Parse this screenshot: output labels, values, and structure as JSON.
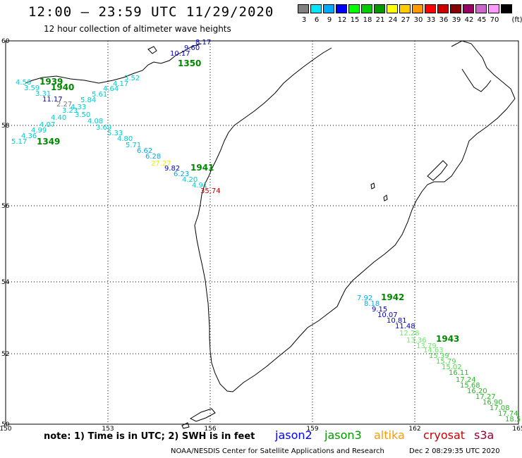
{
  "header": {
    "title": "12:00 – 23:59 UTC 11/29/2020",
    "subtitle": "12 hour collection of altimeter wave heights"
  },
  "color_scale": {
    "unit": "(ft)",
    "levels": [
      {
        "label": "3",
        "color": "#808080"
      },
      {
        "label": "6",
        "color": "#00e5ff"
      },
      {
        "label": "9",
        "color": "#00aaff"
      },
      {
        "label": "12",
        "color": "#0000ff"
      },
      {
        "label": "15",
        "color": "#00ff00"
      },
      {
        "label": "18",
        "color": "#00cc00"
      },
      {
        "label": "21",
        "color": "#009900"
      },
      {
        "label": "24",
        "color": "#ffff00"
      },
      {
        "label": "27",
        "color": "#ffcc00"
      },
      {
        "label": "30",
        "color": "#ff9900"
      },
      {
        "label": "33",
        "color": "#ff0000"
      },
      {
        "label": "36",
        "color": "#cc0000"
      },
      {
        "label": "39",
        "color": "#880000"
      },
      {
        "label": "42",
        "color": "#990066"
      },
      {
        "label": "45",
        "color": "#cc66cc"
      },
      {
        "label": "70",
        "color": "#ff99ff"
      },
      {
        "label": "",
        "color": "#000000"
      }
    ]
  },
  "map": {
    "lon_ticks": [
      "150",
      "153",
      "156",
      "159",
      "162",
      "165"
    ],
    "lat_ticks": [
      "50",
      "52",
      "54",
      "56",
      "58",
      "60"
    ],
    "pass_times": [
      {
        "label": "1350",
        "color": "#008800"
      },
      {
        "label": "1939",
        "color": "#008800"
      },
      {
        "label": "1940",
        "color": "#008800"
      },
      {
        "label": "1349",
        "color": "#008800"
      },
      {
        "label": "1941",
        "color": "#008800"
      },
      {
        "label": "1942",
        "color": "#008800"
      },
      {
        "label": "1943",
        "color": "#008800"
      }
    ],
    "swh_labels": [
      {
        "v": "8.17",
        "c": "#0000cc"
      },
      {
        "v": "9.60",
        "c": "#0000cc"
      },
      {
        "v": "10.17",
        "c": "#0000cc"
      },
      {
        "v": "4.56",
        "c": "#00cccc"
      },
      {
        "v": "3.59",
        "c": "#00cccc"
      },
      {
        "v": "3.31",
        "c": "#00cccc"
      },
      {
        "v": "11.17",
        "c": "#0000cc"
      },
      {
        "v": "2.27",
        "c": "#777777"
      },
      {
        "v": "4.33",
        "c": "#00cccc"
      },
      {
        "v": "3.23",
        "c": "#00cccc"
      },
      {
        "v": "4.40",
        "c": "#00cccc"
      },
      {
        "v": "4.07",
        "c": "#00cccc"
      },
      {
        "v": "4.99",
        "c": "#00cccc"
      },
      {
        "v": "4.36",
        "c": "#00cccc"
      },
      {
        "v": "5.17",
        "c": "#00cccc"
      },
      {
        "v": "5.52",
        "c": "#00cccc"
      },
      {
        "v": "4.17",
        "c": "#00cccc"
      },
      {
        "v": "4.64",
        "c": "#00cccc"
      },
      {
        "v": "5.61",
        "c": "#00cccc"
      },
      {
        "v": "5.84",
        "c": "#00cccc"
      },
      {
        "v": "3.50",
        "c": "#00cccc"
      },
      {
        "v": "4.08",
        "c": "#00cccc"
      },
      {
        "v": "3.69",
        "c": "#00cccc"
      },
      {
        "v": "5.33",
        "c": "#00cccc"
      },
      {
        "v": "4.80",
        "c": "#00cccc"
      },
      {
        "v": "5.71",
        "c": "#00cccc"
      },
      {
        "v": "6.62",
        "c": "#00aaee"
      },
      {
        "v": "6.28",
        "c": "#00aaee"
      },
      {
        "v": "27.27",
        "c": "#eeee00"
      },
      {
        "v": "9.82",
        "c": "#0000cc"
      },
      {
        "v": "6.23",
        "c": "#00aaee"
      },
      {
        "v": "4.20",
        "c": "#00cccc"
      },
      {
        "v": "4.91",
        "c": "#00cccc"
      },
      {
        "v": "35.74",
        "c": "#cc0000"
      },
      {
        "v": "7.92",
        "c": "#00aaee"
      },
      {
        "v": "8.18",
        "c": "#00aaee"
      },
      {
        "v": "9.15",
        "c": "#0000cc"
      },
      {
        "v": "10.07",
        "c": "#0000cc"
      },
      {
        "v": "10.81",
        "c": "#0000cc"
      },
      {
        "v": "11.48",
        "c": "#0000cc"
      },
      {
        "v": "12.28",
        "c": "#66ee66"
      },
      {
        "v": "13.36",
        "c": "#66ee66"
      },
      {
        "v": "13.79",
        "c": "#66ee66"
      },
      {
        "v": "14.63",
        "c": "#66ee66"
      },
      {
        "v": "15.39",
        "c": "#44dd44"
      },
      {
        "v": "15.79",
        "c": "#44dd44"
      },
      {
        "v": "15.02",
        "c": "#44dd44"
      },
      {
        "v": "16.11",
        "c": "#22bb22"
      },
      {
        "v": "17.24",
        "c": "#22bb22"
      },
      {
        "v": "15.68",
        "c": "#22bb22"
      },
      {
        "v": "16.20",
        "c": "#22bb22"
      },
      {
        "v": "17.27",
        "c": "#22bb22"
      },
      {
        "v": "16.90",
        "c": "#22bb22"
      },
      {
        "v": "17.08",
        "c": "#22bb22"
      },
      {
        "v": "17.74",
        "c": "#22bb22"
      },
      {
        "v": "18.5",
        "c": "#22bb22"
      }
    ]
  },
  "footer": {
    "note": "note: 1) Time is in UTC; 2) SWH is in feet",
    "satellites": [
      {
        "name": "jason2",
        "color": "#0000ff"
      },
      {
        "name": "jason3",
        "color": "#009900"
      },
      {
        "name": "altika",
        "color": "#ff9900"
      },
      {
        "name": "cryosat",
        "color": "#cc0000"
      },
      {
        "name": "s3a",
        "color": "#990033"
      }
    ],
    "credit": "NOAA/NESDIS Center for Satellite Applications and Research",
    "timestamp": "Dec  2 08:29:35 UTC 2020"
  }
}
